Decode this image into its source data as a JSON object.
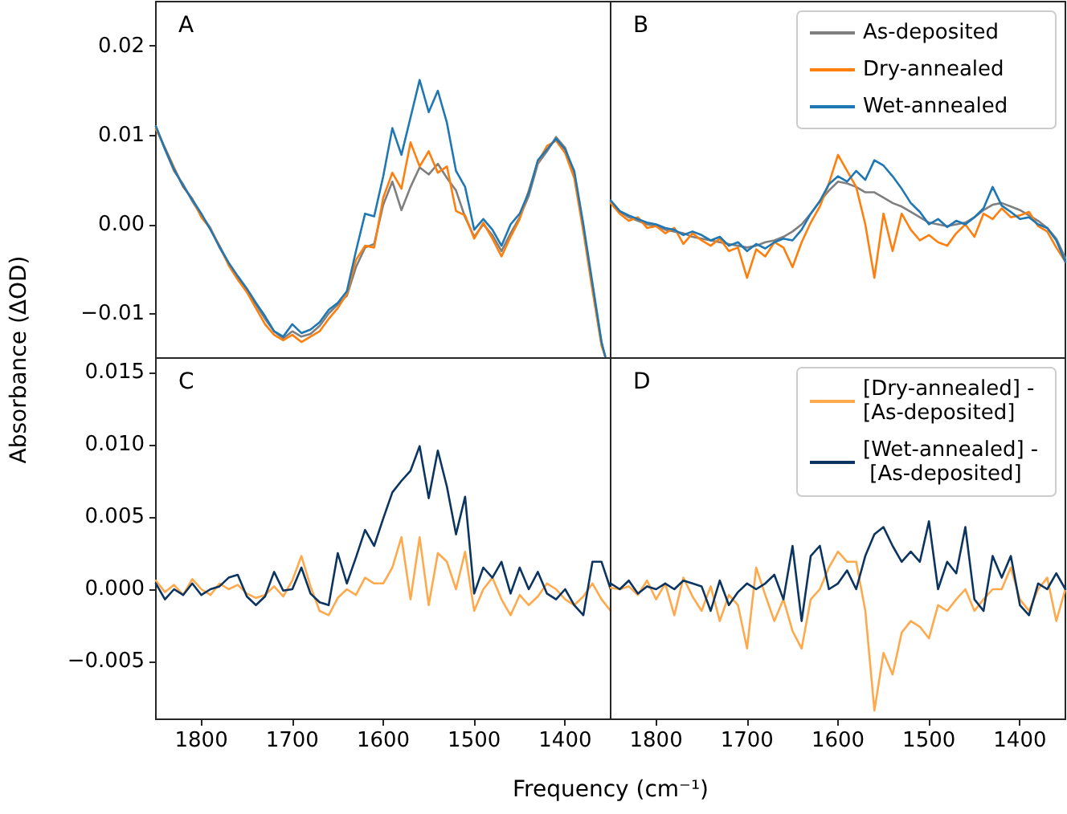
{
  "chart_data": [
    {
      "type": "line",
      "ylabel": "Absorbance (ΔOD)",
      "annotations": [
        "A"
      ],
      "tick_labels": "y",
      "grid": false,
      "xlim": [
        1850,
        1350
      ],
      "xticks": [
        1800,
        1700,
        1600,
        1500,
        1400
      ],
      "ylim": [
        -0.015,
        0.025
      ],
      "yticks": [
        {
          "value": -0.01,
          "label": "−0.01"
        },
        {
          "value": 0,
          "label": "0.00"
        },
        {
          "value": 0.01,
          "label": "0.01"
        },
        {
          "value": 0.02,
          "label": "0.02"
        }
      ],
      "x": [
        1850,
        1840,
        1830,
        1820,
        1810,
        1800,
        1790,
        1780,
        1770,
        1760,
        1750,
        1740,
        1730,
        1720,
        1710,
        1700,
        1690,
        1680,
        1670,
        1660,
        1650,
        1640,
        1630,
        1620,
        1610,
        1600,
        1590,
        1580,
        1570,
        1560,
        1550,
        1540,
        1530,
        1520,
        1510,
        1500,
        1490,
        1480,
        1470,
        1460,
        1450,
        1440,
        1430,
        1420,
        1410,
        1400,
        1390,
        1380,
        1370,
        1360,
        1356
      ],
      "series": [
        {
          "color": "#7f7f7f",
          "values": [
            0.011,
            0.0084,
            0.006,
            0.0045,
            0.0026,
            0.001,
            -0.0004,
            -0.0026,
            -0.0044,
            -0.006,
            -0.0074,
            -0.009,
            -0.0106,
            -0.012,
            -0.0128,
            -0.012,
            -0.0126,
            -0.0123,
            -0.0114,
            -0.01,
            -0.009,
            -0.008,
            -0.0048,
            -0.0026,
            -0.0022,
            0.0022,
            0.0048,
            0.0016,
            0.0042,
            0.0064,
            0.0056,
            0.0068,
            0.0052,
            0.0038,
            0.0008,
            -0.0014,
            0.0,
            -0.0012,
            -0.003,
            -0.001,
            0.0008,
            0.0032,
            0.0068,
            0.0082,
            0.0098,
            0.0086,
            0.0056,
            -0.0004,
            -0.007,
            -0.0134,
            -0.0148
          ]
        },
        {
          "color": "#ff7f0e",
          "values": [
            0.0107,
            0.0086,
            0.0064,
            0.0042,
            0.0029,
            0.0008,
            -0.0005,
            -0.0024,
            -0.0046,
            -0.0062,
            -0.0076,
            -0.0094,
            -0.0112,
            -0.0124,
            -0.013,
            -0.0124,
            -0.0132,
            -0.0126,
            -0.012,
            -0.0106,
            -0.0094,
            -0.0078,
            -0.004,
            -0.0024,
            -0.0026,
            0.003,
            0.0058,
            0.004,
            0.0092,
            0.0065,
            0.0082,
            0.0058,
            0.0065,
            0.0015,
            0.001,
            -0.0016,
            0.0002,
            -0.0016,
            -0.0036,
            -0.0014,
            0.0006,
            0.0038,
            0.007,
            0.0088,
            0.0094,
            0.008,
            0.0052,
            -0.0008,
            -0.0074,
            -0.0136,
            -0.0148
          ]
        },
        {
          "color": "#1f77b4",
          "values": [
            0.011,
            0.0085,
            0.0062,
            0.0043,
            0.0028,
            0.0012,
            -0.0006,
            -0.0025,
            -0.0043,
            -0.0058,
            -0.0072,
            -0.0088,
            -0.0103,
            -0.012,
            -0.0126,
            -0.0112,
            -0.0122,
            -0.0118,
            -0.011,
            -0.0096,
            -0.0088,
            -0.0075,
            -0.003,
            0.0012,
            0.0009,
            0.0054,
            0.0108,
            0.0078,
            0.012,
            0.0162,
            0.0126,
            0.015,
            0.0114,
            0.006,
            0.0042,
            -0.0006,
            0.0006,
            -0.0006,
            -0.0024,
            0.0,
            0.0012,
            0.0036,
            0.0072,
            0.0084,
            0.0096,
            0.0084,
            0.006,
            0.0,
            -0.0066,
            -0.0132,
            -0.0148
          ]
        }
      ]
    },
    {
      "type": "line",
      "annotations": [
        "B"
      ],
      "tick_labels": false,
      "grid": false,
      "legend": "top right",
      "xlim": [
        1850,
        1350
      ],
      "ylim": [
        -0.015,
        0.025
      ],
      "x": [
        1850,
        1840,
        1830,
        1820,
        1810,
        1800,
        1790,
        1780,
        1770,
        1760,
        1750,
        1740,
        1730,
        1720,
        1710,
        1700,
        1690,
        1680,
        1670,
        1660,
        1650,
        1640,
        1630,
        1620,
        1610,
        1600,
        1590,
        1580,
        1570,
        1560,
        1550,
        1540,
        1530,
        1520,
        1510,
        1500,
        1490,
        1480,
        1470,
        1460,
        1450,
        1440,
        1430,
        1420,
        1410,
        1400,
        1390,
        1380,
        1370,
        1360,
        1350
      ],
      "series": [
        {
          "name": "As-deposited",
          "color": "#7f7f7f",
          "values": [
            0.0026,
            0.0014,
            0.0008,
            0.0004,
            0.0,
            -0.0002,
            -0.0006,
            -0.0008,
            -0.001,
            -0.0014,
            -0.0016,
            -0.0018,
            -0.002,
            -0.0022,
            -0.0024,
            -0.0026,
            -0.0024,
            -0.002,
            -0.0018,
            -0.0014,
            -0.0008,
            0.0,
            0.0012,
            0.0026,
            0.0038,
            0.0048,
            0.0046,
            0.0042,
            0.0036,
            0.0036,
            0.003,
            0.0024,
            0.002,
            0.0014,
            0.0008,
            0.0002,
            0.0,
            -0.0002,
            0.0,
            0.0002,
            0.0008,
            0.0016,
            0.0022,
            0.0024,
            0.002,
            0.0016,
            0.001,
            0.0004,
            -0.0004,
            -0.0016,
            -0.0038
          ]
        },
        {
          "name": "Dry-annealed",
          "color": "#ff7f0e",
          "values": [
            0.0024,
            0.0012,
            0.0004,
            0.0008,
            -0.0004,
            -0.0002,
            -0.001,
            -0.0004,
            -0.0022,
            -0.001,
            -0.0018,
            -0.0024,
            -0.0016,
            -0.003,
            -0.0026,
            -0.006,
            -0.0028,
            -0.0036,
            -0.002,
            -0.0026,
            -0.0048,
            -0.002,
            0.0002,
            0.002,
            0.0046,
            0.0078,
            0.006,
            0.0042,
            0.0,
            -0.006,
            0.0012,
            -0.003,
            0.0012,
            -0.0006,
            -0.0018,
            -0.0012,
            -0.002,
            -0.0024,
            -0.001,
            0.0,
            -0.0014,
            0.0012,
            0.0006,
            0.0018,
            0.0008,
            0.001,
            0.0014,
            -0.0002,
            -0.0008,
            -0.0026,
            -0.0042
          ]
        },
        {
          "name": "Wet-annealed",
          "color": "#1f77b4",
          "values": [
            0.0027,
            0.0015,
            0.001,
            0.0006,
            0.0002,
            0.0,
            -0.0004,
            -0.0006,
            -0.0012,
            -0.0008,
            -0.0012,
            -0.0018,
            -0.0014,
            -0.0024,
            -0.002,
            -0.003,
            -0.0022,
            -0.0027,
            -0.002,
            -0.0016,
            -0.0018,
            -0.0006,
            0.0012,
            0.0026,
            0.0045,
            0.0054,
            0.0048,
            0.006,
            0.005,
            0.0072,
            0.0066,
            0.0054,
            0.004,
            0.0024,
            0.0014,
            0.0,
            0.0006,
            -0.0003,
            0.0004,
            0.0,
            0.0008,
            0.0018,
            0.0042,
            0.0021,
            0.0014,
            0.0006,
            0.0008,
            0.0,
            -0.0004,
            -0.0018,
            -0.0042
          ]
        }
      ]
    },
    {
      "type": "line",
      "xlabel": "Frequency (cm⁻¹)",
      "annotations": [
        "C"
      ],
      "grid": false,
      "xlim": [
        1850,
        1350
      ],
      "xticks": [
        1800,
        1700,
        1600,
        1500,
        1400
      ],
      "ylim": [
        -0.009,
        0.016
      ],
      "yticks": [
        {
          "value": -0.005,
          "label": "−0.005"
        },
        {
          "value": 0,
          "label": "0.000"
        },
        {
          "value": 0.005,
          "label": "0.005"
        },
        {
          "value": 0.01,
          "label": "0.010"
        },
        {
          "value": 0.015,
          "label": "0.015"
        }
      ],
      "x": [
        1850,
        1840,
        1830,
        1820,
        1810,
        1800,
        1790,
        1780,
        1770,
        1760,
        1750,
        1740,
        1730,
        1720,
        1710,
        1700,
        1690,
        1680,
        1670,
        1660,
        1650,
        1640,
        1630,
        1620,
        1610,
        1600,
        1590,
        1580,
        1570,
        1560,
        1550,
        1540,
        1530,
        1520,
        1510,
        1500,
        1490,
        1480,
        1470,
        1460,
        1450,
        1440,
        1430,
        1420,
        1410,
        1400,
        1390,
        1380,
        1370,
        1360,
        1350
      ],
      "series": [
        {
          "color": "#ffa94d",
          "values": [
            0.0006,
            -0.0002,
            0.0003,
            -0.0004,
            0.0007,
            0.0,
            -0.0004,
            0.0004,
            0.0,
            0.0003,
            -0.0003,
            -0.0006,
            -0.0004,
            0.0002,
            -0.0005,
            0.0006,
            0.0023,
            0.0002,
            -0.0015,
            -0.0018,
            -0.0006,
            0.0,
            -0.0004,
            0.0008,
            0.0004,
            0.0004,
            0.0015,
            0.0036,
            -0.0007,
            0.0036,
            -0.0011,
            0.0025,
            0.0019,
            0.0,
            0.0026,
            -0.0015,
            0.0,
            0.0008,
            -0.0007,
            -0.0018,
            -0.0004,
            -0.0011,
            -0.0005,
            0.0004,
            0.0,
            -0.0007,
            -0.0011,
            -0.0005,
            0.0004,
            -0.0007,
            -0.0015
          ]
        },
        {
          "color": "#0b3560",
          "values": [
            0.0004,
            -0.0007,
            0.0,
            -0.0004,
            0.0004,
            -0.0004,
            0.0,
            0.0002,
            0.0008,
            0.001,
            -0.0005,
            -0.0011,
            -0.0005,
            0.0012,
            -0.0001,
            0.0,
            0.0015,
            -0.0003,
            -0.0009,
            -0.0011,
            0.0025,
            0.0004,
            0.0022,
            0.0041,
            0.003,
            0.0049,
            0.0067,
            0.0075,
            0.0082,
            0.0099,
            0.0063,
            0.0096,
            0.0071,
            0.0038,
            0.0064,
            -0.0003,
            0.0015,
            0.0008,
            0.0019,
            -0.0003,
            0.0015,
            0.0,
            0.0012,
            -0.0003,
            -0.0007,
            0.0,
            -0.0011,
            -0.0018,
            0.0019,
            0.0019,
            0.0
          ]
        }
      ]
    },
    {
      "type": "line",
      "annotations": [
        "D"
      ],
      "tick_labels": "x",
      "grid": false,
      "legend": "top right",
      "xlim": [
        1850,
        1350
      ],
      "xticks": [
        1800,
        1700,
        1600,
        1500,
        1400
      ],
      "ylim": [
        -0.009,
        0.016
      ],
      "x": [
        1850,
        1840,
        1830,
        1820,
        1810,
        1800,
        1790,
        1780,
        1770,
        1760,
        1750,
        1740,
        1730,
        1720,
        1710,
        1700,
        1690,
        1680,
        1670,
        1660,
        1650,
        1640,
        1630,
        1620,
        1610,
        1600,
        1590,
        1580,
        1570,
        1560,
        1550,
        1540,
        1530,
        1520,
        1510,
        1500,
        1490,
        1480,
        1470,
        1460,
        1450,
        1440,
        1430,
        1420,
        1410,
        1400,
        1390,
        1380,
        1370,
        1360,
        1350
      ],
      "series": [
        {
          "name": "[Dry-annealed] - [As-deposited]",
          "color": "#ffa94d",
          "values": [
            0.0001,
            0.0,
            0.0002,
            -0.0004,
            0.0006,
            -0.0007,
            0.0004,
            -0.0018,
            0.0008,
            -0.0005,
            -0.0015,
            0.0002,
            -0.0022,
            -0.0004,
            -0.0011,
            -0.0041,
            0.0015,
            -0.0004,
            -0.0022,
            -0.0007,
            -0.0029,
            -0.0041,
            -0.0007,
            0.0,
            0.0015,
            0.0026,
            0.0019,
            0.0019,
            -0.0015,
            -0.0084,
            -0.0044,
            -0.0059,
            -0.003,
            -0.0022,
            -0.0026,
            -0.0034,
            -0.0011,
            -0.0015,
            -0.0007,
            0.0,
            -0.0015,
            -0.0007,
            0.0,
            0.0,
            0.0015,
            -0.0007,
            -0.0015,
            0.0,
            0.0008,
            -0.0022,
            0.0
          ]
        },
        {
          "name": "[Wet-annealed] - [As-deposited]",
          "color": "#0b3560",
          "values": [
            0.0004,
            0.0,
            0.0006,
            -0.0003,
            0.0002,
            0.0,
            0.0004,
            0.0,
            0.0006,
            0.0004,
            0.0002,
            -0.0015,
            0.0006,
            -0.0011,
            -0.0002,
            0.0004,
            0.0,
            0.0004,
            0.001,
            -0.0007,
            0.003,
            -0.0022,
            0.0023,
            0.003,
            0.0,
            0.0004,
            0.0013,
            0.0,
            0.0023,
            0.0038,
            0.0043,
            0.003,
            0.0019,
            0.0026,
            0.0019,
            0.0047,
            0.0,
            0.0019,
            0.0011,
            0.0043,
            -0.0007,
            -0.0015,
            0.0023,
            0.0008,
            0.0023,
            -0.0011,
            -0.0018,
            0.0004,
            0.0,
            0.0011,
            0.0
          ]
        }
      ]
    }
  ]
}
